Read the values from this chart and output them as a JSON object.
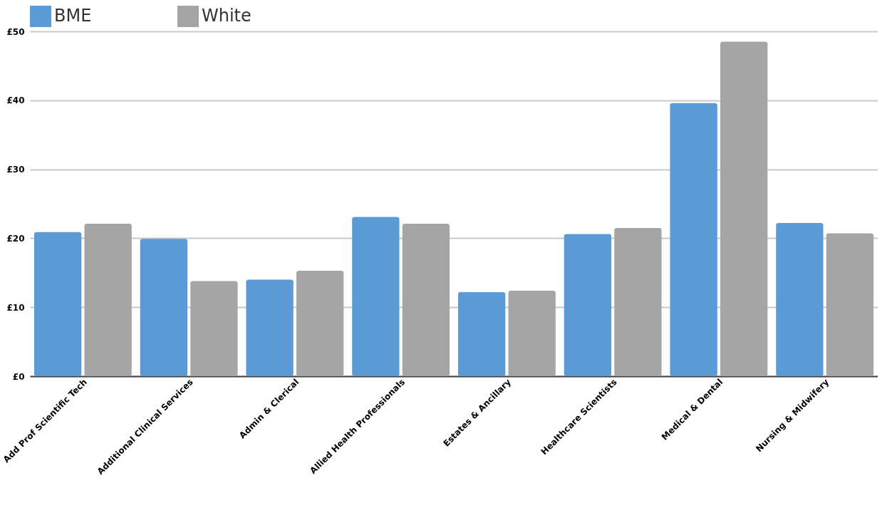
{
  "chart_data": {
    "type": "bar",
    "categories": [
      "Add Prof Scientific Tech",
      "Additional Clinical Services",
      "Admin & Clerical",
      "Allied Health Professionals",
      "Estates & Ancillary",
      "Healthcare Scientists",
      "Medical & Dental",
      "Nursing & Midwifery"
    ],
    "series": [
      {
        "name": "BME",
        "color": "#5b9bd5",
        "values": [
          20.9,
          19.9,
          14.0,
          23.1,
          12.2,
          20.6,
          39.6,
          22.2
        ]
      },
      {
        "name": "White",
        "color": "#a5a5a5",
        "values": [
          22.1,
          13.8,
          15.3,
          22.1,
          12.4,
          21.5,
          48.5,
          20.7
        ]
      }
    ],
    "ylim": [
      0,
      50
    ],
    "yticks": [
      {
        "value": 0,
        "label": "£0"
      },
      {
        "value": 10,
        "label": "£10"
      },
      {
        "value": 20,
        "label": "£20"
      },
      {
        "value": 30,
        "label": "£30"
      },
      {
        "value": 40,
        "label": "£40"
      },
      {
        "value": 50,
        "label": "£50"
      }
    ],
    "grid": "y",
    "legend": "top"
  }
}
